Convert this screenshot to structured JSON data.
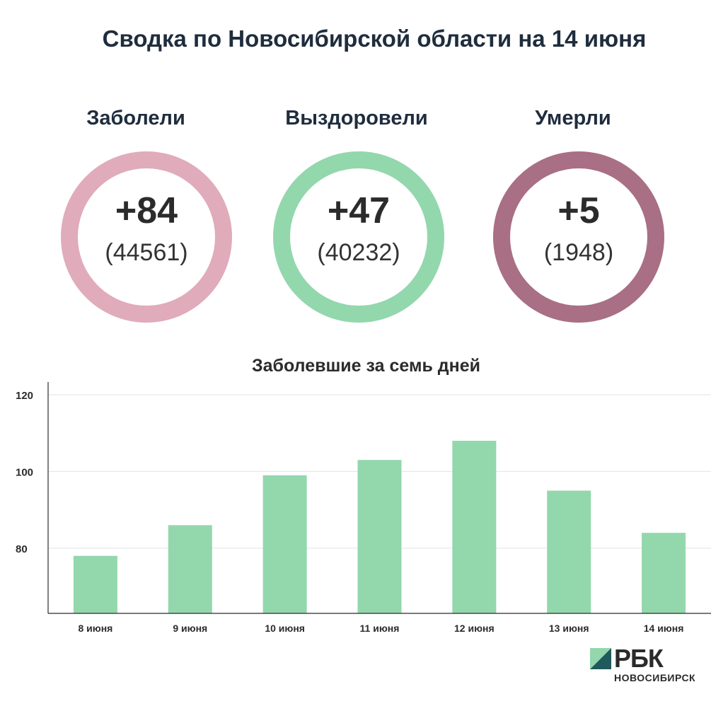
{
  "title": "Сводка по Новосибирской области на 14 июня",
  "stats": [
    {
      "label": "Заболели",
      "delta": "+84",
      "total": "(44561)",
      "color": "#e0abbb"
    },
    {
      "label": "Выздоровели",
      "delta": "+47",
      "total": "(40232)",
      "color": "#93d7ad"
    },
    {
      "label": "Умерли",
      "delta": "+5",
      "total": "(1948)",
      "color": "#a96f84"
    }
  ],
  "chart_data": {
    "type": "bar",
    "title": "Заболевшие за семь дней",
    "categories": [
      "8 июня",
      "9 июня",
      "10 июня",
      "11 июня",
      "12 июня",
      "13 июня",
      "14 июня"
    ],
    "values": [
      78,
      86,
      99,
      103,
      108,
      95,
      84
    ],
    "ylim": [
      63,
      120
    ],
    "yticks": [
      80,
      100,
      120
    ],
    "grid": true,
    "bar_color": "#93d7ad"
  },
  "logo": {
    "text": "РБК",
    "sub": "НОВОСИБИРСК"
  }
}
